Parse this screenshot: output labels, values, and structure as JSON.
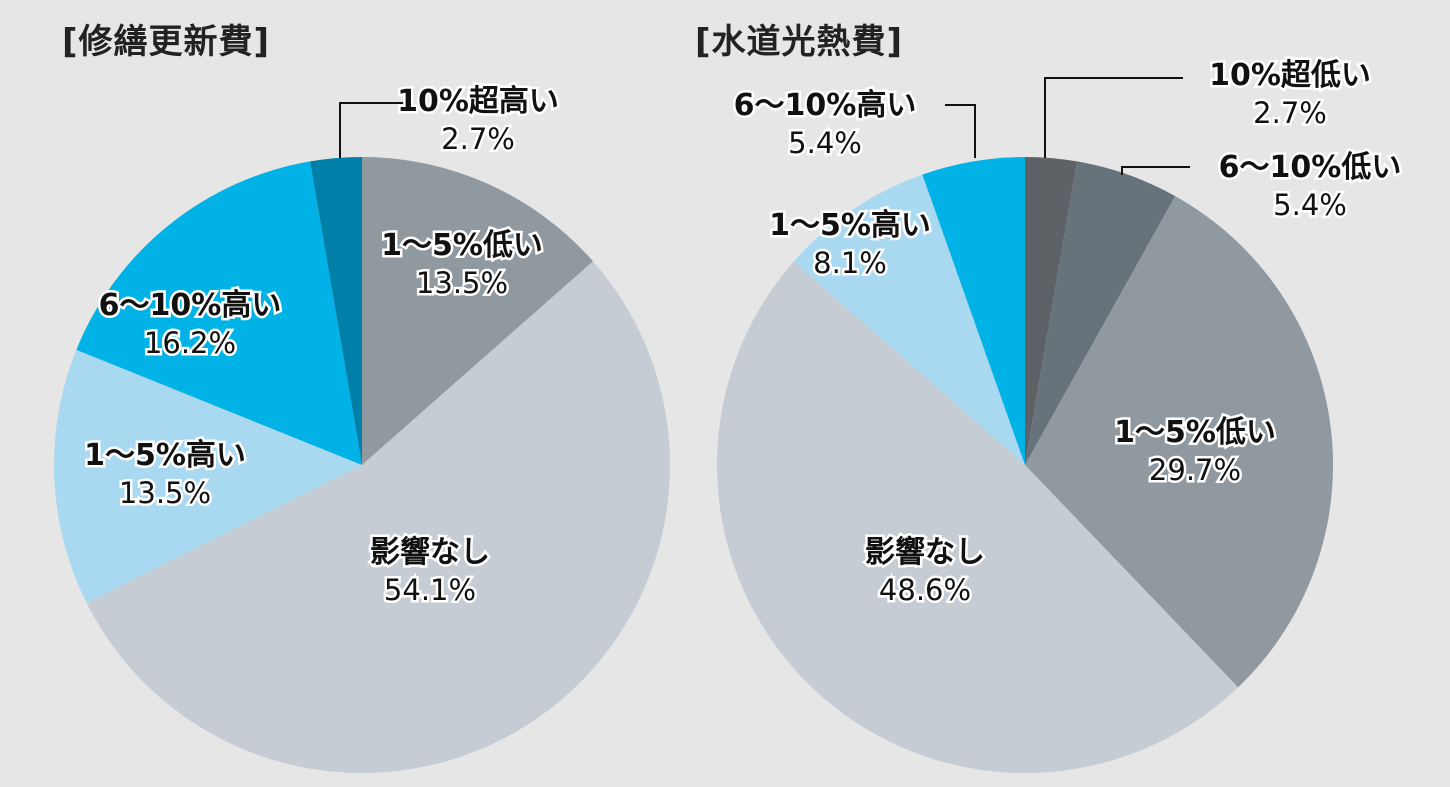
{
  "chart_data": [
    {
      "type": "pie",
      "title": "[修繕更新費]",
      "start": "top",
      "direction": "clockwise",
      "slices": [
        {
          "label": "1～5%低い",
          "value": 13.5,
          "display": "13.5%",
          "color": "#9098a0"
        },
        {
          "label": "影響なし",
          "value": 54.1,
          "display": "54.1%",
          "color": "#c5ccd3"
        },
        {
          "label": "1～5%高い",
          "value": 13.5,
          "display": "13.5%",
          "color": "#a9d9f1"
        },
        {
          "label": "6～10%高い",
          "value": 16.2,
          "display": "16.2%",
          "color": "#00b2e6"
        },
        {
          "label": "10%超高い",
          "value": 2.7,
          "display": "2.7%",
          "color": "#0080a8"
        }
      ]
    },
    {
      "type": "pie",
      "title": "[水道光熱費]",
      "start": "top",
      "direction": "clockwise",
      "slices": [
        {
          "label": "10%超低い",
          "value": 2.7,
          "display": "2.7%",
          "color": "#5e6165"
        },
        {
          "label": "6～10%低い",
          "value": 5.4,
          "display": "5.4%",
          "color": "#67737b"
        },
        {
          "label": "1～5%低い",
          "value": 29.7,
          "display": "29.7%",
          "color": "#9098a0"
        },
        {
          "label": "影響なし",
          "value": 48.6,
          "display": "48.6%",
          "color": "#c5ccd3"
        },
        {
          "label": "1～5%高い",
          "value": 8.1,
          "display": "8.1%",
          "color": "#a9d9f1"
        },
        {
          "label": "6～10%高い",
          "value": 5.4,
          "display": "5.4%",
          "color": "#00b2e6"
        }
      ]
    }
  ]
}
